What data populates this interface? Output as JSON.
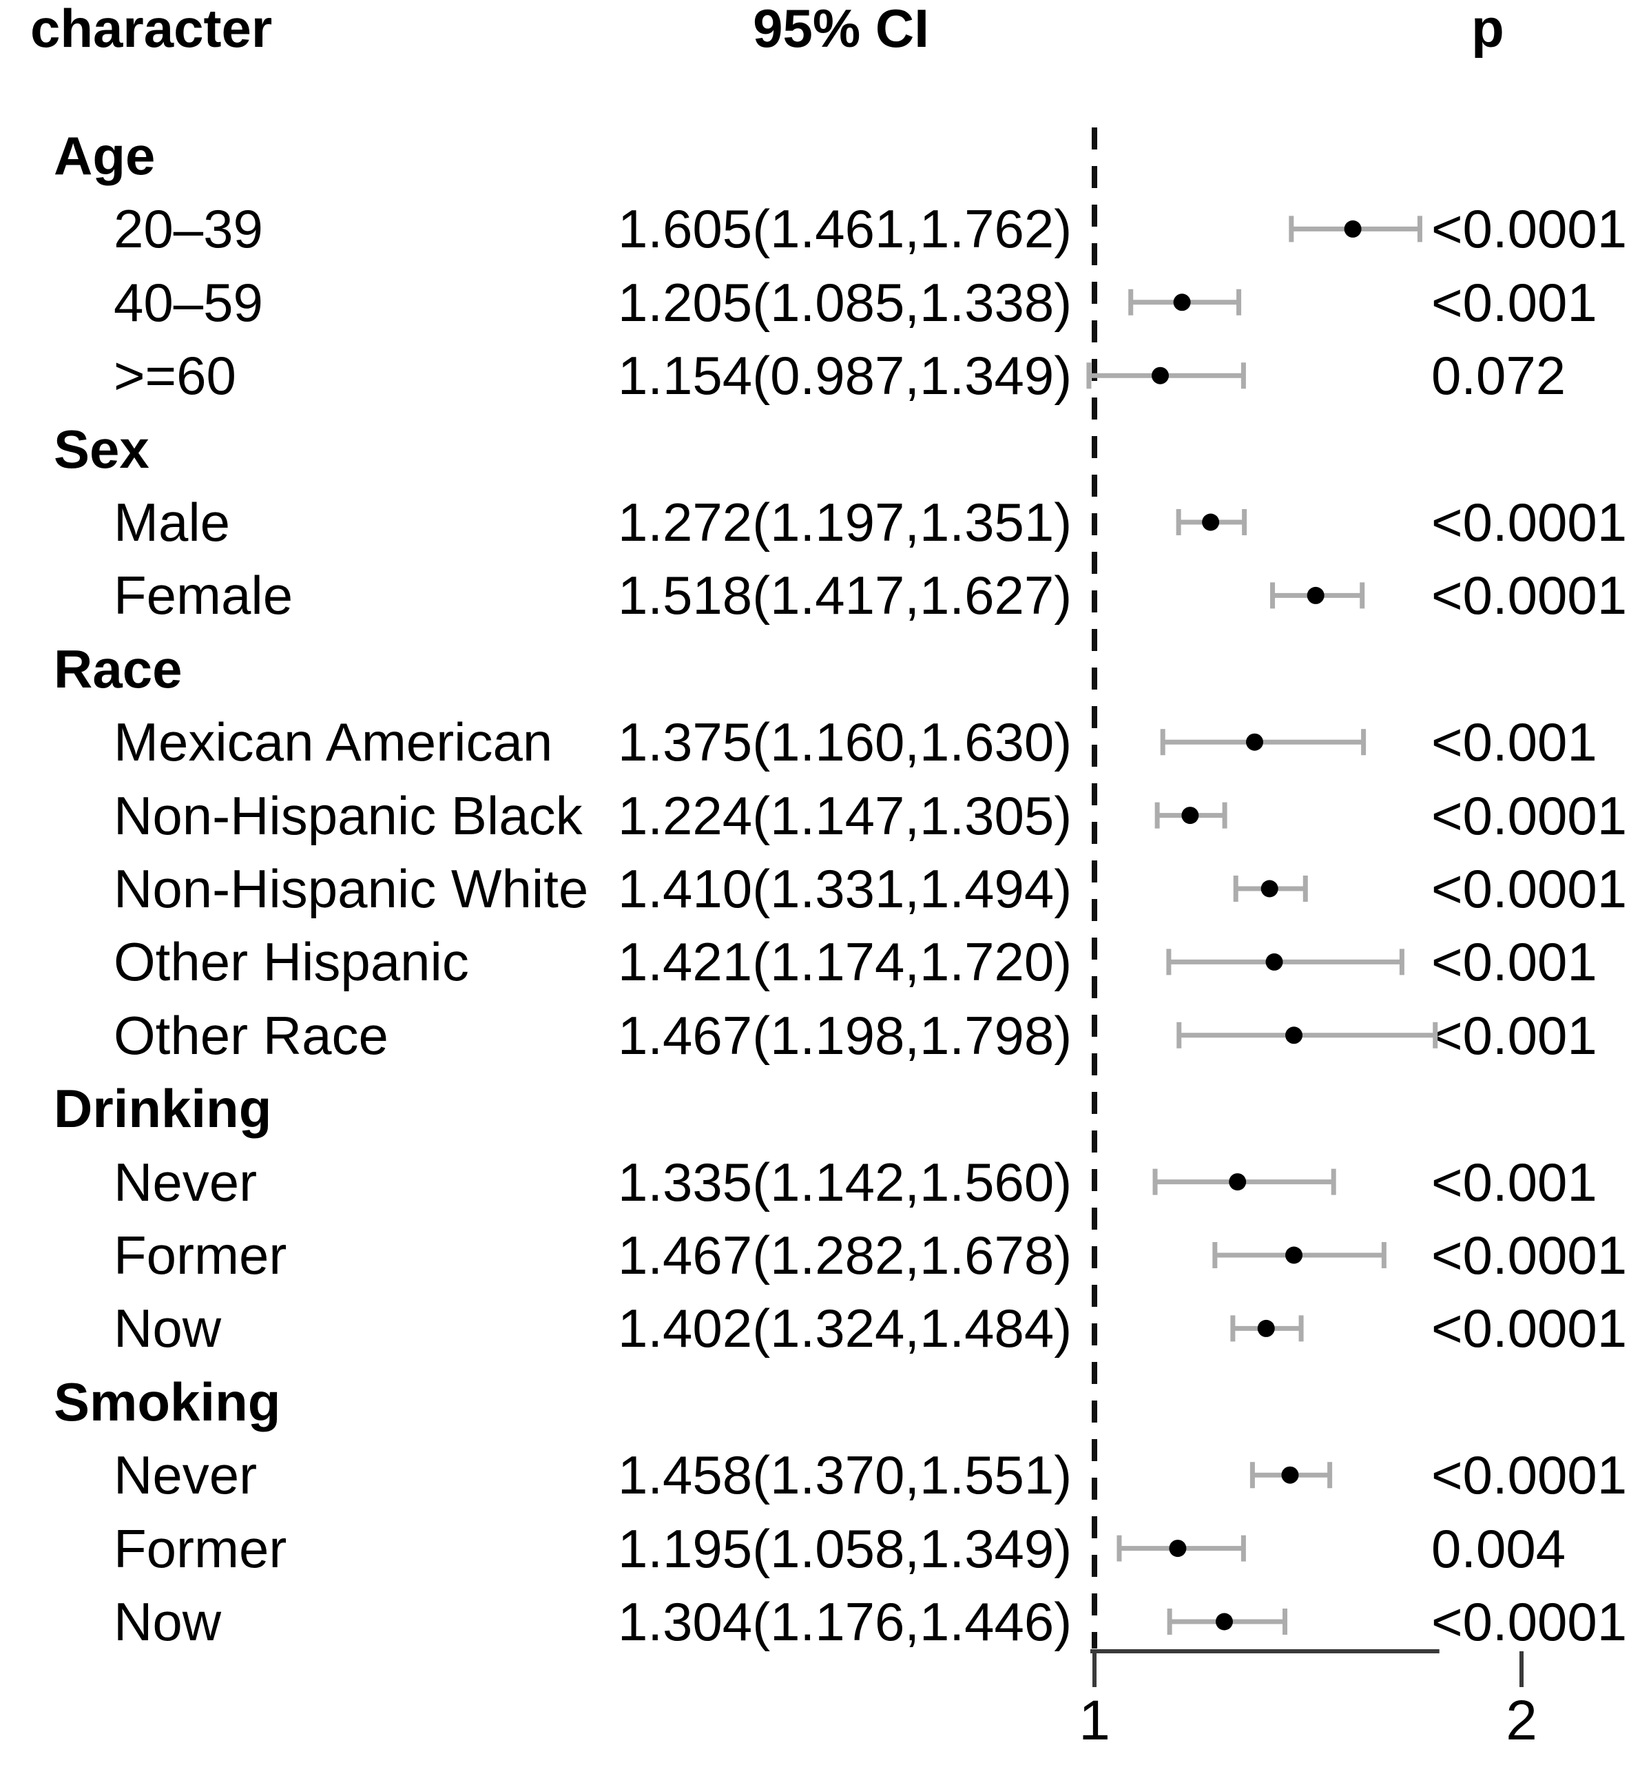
{
  "figure": {
    "background": "#ffffff"
  },
  "chart_data": {
    "type": "scatter",
    "subtype": "forest-plot",
    "title": "",
    "columns": {
      "character": "character",
      "ci": "95% CI",
      "p": "p"
    },
    "axis": {
      "ticks": [
        "1",
        "2"
      ],
      "tick_values": [
        1,
        2
      ],
      "reference_value": 1,
      "xlim": [
        0.78,
        2.08
      ],
      "grid": false,
      "legend": "none"
    },
    "colors": {
      "dot": "#000000",
      "whisker": "#acacac",
      "reference_line": "#111111",
      "axis_line": "#3a3a3a",
      "text": "#000000"
    },
    "rows": [
      {
        "kind": "group",
        "label": "Age"
      },
      {
        "kind": "item",
        "label": "20–39",
        "ci": "1.605(1.461,1.762)",
        "est": 1.605,
        "lo": 1.461,
        "hi": 1.762,
        "p": "<0.0001"
      },
      {
        "kind": "item",
        "label": "40–59",
        "ci": "1.205(1.085,1.338)",
        "est": 1.205,
        "lo": 1.085,
        "hi": 1.338,
        "p": "<0.001"
      },
      {
        "kind": "item",
        "label": ">=60",
        "ci": "1.154(0.987,1.349)",
        "est": 1.154,
        "lo": 0.987,
        "hi": 1.349,
        "p": "0.072"
      },
      {
        "kind": "group",
        "label": "Sex"
      },
      {
        "kind": "item",
        "label": "Male",
        "ci": "1.272(1.197,1.351)",
        "est": 1.272,
        "lo": 1.197,
        "hi": 1.351,
        "p": "<0.0001"
      },
      {
        "kind": "item",
        "label": "Female",
        "ci": "1.518(1.417,1.627)",
        "est": 1.518,
        "lo": 1.417,
        "hi": 1.627,
        "p": "<0.0001"
      },
      {
        "kind": "group",
        "label": "Race"
      },
      {
        "kind": "item",
        "label": "Mexican American",
        "ci": "1.375(1.160,1.630)",
        "est": 1.375,
        "lo": 1.16,
        "hi": 1.63,
        "p": "<0.001"
      },
      {
        "kind": "item",
        "label": "Non-Hispanic Black",
        "ci": "1.224(1.147,1.305)",
        "est": 1.224,
        "lo": 1.147,
        "hi": 1.305,
        "p": "<0.0001"
      },
      {
        "kind": "item",
        "label": "Non-Hispanic White",
        "ci": "1.410(1.331,1.494)",
        "est": 1.41,
        "lo": 1.331,
        "hi": 1.494,
        "p": "<0.0001"
      },
      {
        "kind": "item",
        "label": "Other Hispanic",
        "ci": "1.421(1.174,1.720)",
        "est": 1.421,
        "lo": 1.174,
        "hi": 1.72,
        "p": "<0.001"
      },
      {
        "kind": "item",
        "label": "Other Race",
        "ci": "1.467(1.198,1.798)",
        "est": 1.467,
        "lo": 1.198,
        "hi": 1.798,
        "p": "<0.001"
      },
      {
        "kind": "group",
        "label": "Drinking"
      },
      {
        "kind": "item",
        "label": "Never",
        "ci": "1.335(1.142,1.560)",
        "est": 1.335,
        "lo": 1.142,
        "hi": 1.56,
        "p": "<0.001"
      },
      {
        "kind": "item",
        "label": "Former",
        "ci": "1.467(1.282,1.678)",
        "est": 1.467,
        "lo": 1.282,
        "hi": 1.678,
        "p": "<0.0001"
      },
      {
        "kind": "item",
        "label": "Now",
        "ci": "1.402(1.324,1.484)",
        "est": 1.402,
        "lo": 1.324,
        "hi": 1.484,
        "p": "<0.0001"
      },
      {
        "kind": "group",
        "label": "Smoking"
      },
      {
        "kind": "item",
        "label": "Never",
        "ci": "1.458(1.370,1.551)",
        "est": 1.458,
        "lo": 1.37,
        "hi": 1.551,
        "p": "<0.0001"
      },
      {
        "kind": "item",
        "label": "Former",
        "ci": "1.195(1.058,1.349)",
        "est": 1.195,
        "lo": 1.058,
        "hi": 1.349,
        "p": "0.004"
      },
      {
        "kind": "item",
        "label": "Now",
        "ci": "1.304(1.176,1.446)",
        "est": 1.304,
        "lo": 1.176,
        "hi": 1.446,
        "p": "<0.0001"
      }
    ]
  }
}
